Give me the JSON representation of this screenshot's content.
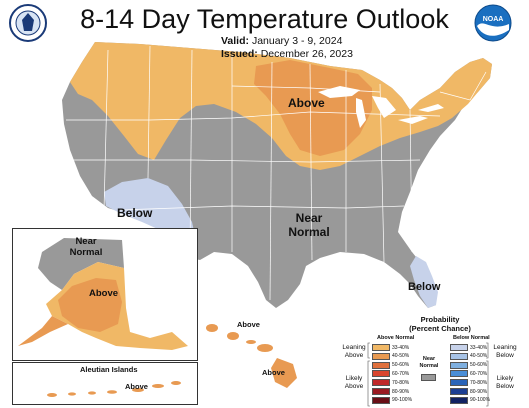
{
  "header": {
    "title": "8-14 Day Temperature Outlook",
    "valid_label": "Valid:",
    "valid_value": "January 3 - 9, 2024",
    "issued_label": "Issued:",
    "issued_value": "December 26, 2023"
  },
  "logos": {
    "left": "us-department-of-commerce-seal",
    "right": "noaa-logo",
    "right_text": "NOAA"
  },
  "map_labels": {
    "above_north": "Above",
    "below_southwest": "Below",
    "near_normal_line1": "Near",
    "near_normal_line2": "Normal",
    "below_florida": "Below",
    "alaska_near_line1": "Near",
    "alaska_near_line2": "Normal",
    "alaska_above": "Above",
    "aleutian_title": "Aleutian Islands",
    "aleutian_above": "Above",
    "hawaii_above_1": "Above",
    "hawaii_above_2": "Above"
  },
  "legend": {
    "title_line1": "Probability",
    "title_line2": "(Percent Chance)",
    "above_normal_header": "Above Normal",
    "below_normal_header": "Below Normal",
    "near_normal_line1": "Near",
    "near_normal_line2": "Normal",
    "leaning_above_1": "Leaning",
    "leaning_above_2": "Above",
    "likely_above_1": "Likely",
    "likely_above_2": "Above",
    "leaning_below_1": "Leaning",
    "leaning_below_2": "Below",
    "likely_below_1": "Likely",
    "likely_below_2": "Below",
    "above_bins": [
      {
        "label": "33-40%",
        "color": "#f0b866"
      },
      {
        "label": "40-50%",
        "color": "#e89a52"
      },
      {
        "label": "50-60%",
        "color": "#e0703c"
      },
      {
        "label": "60-70%",
        "color": "#d8452e"
      },
      {
        "label": "70-80%",
        "color": "#c0282a"
      },
      {
        "label": "80-90%",
        "color": "#9a1a22"
      },
      {
        "label": "90-100%",
        "color": "#6a0e16"
      }
    ],
    "below_bins": [
      {
        "label": "33-40%",
        "color": "#c7d2ea"
      },
      {
        "label": "40-50%",
        "color": "#a7c3e6"
      },
      {
        "label": "50-60%",
        "color": "#7fb0e0"
      },
      {
        "label": "60-70%",
        "color": "#4a8ed6"
      },
      {
        "label": "70-80%",
        "color": "#2a64b8"
      },
      {
        "label": "80-90%",
        "color": "#1c3e92"
      },
      {
        "label": "90-100%",
        "color": "#122262"
      }
    ],
    "near_color": "#999999"
  },
  "colors": {
    "near_normal": "#999999",
    "leaning_above": "#f0b866",
    "above_40_50": "#e89a52",
    "above_50_60": "#e0703c",
    "leaning_below": "#c7d2ea",
    "ocean": "#ffffff",
    "state_lines": "#ffffff"
  }
}
